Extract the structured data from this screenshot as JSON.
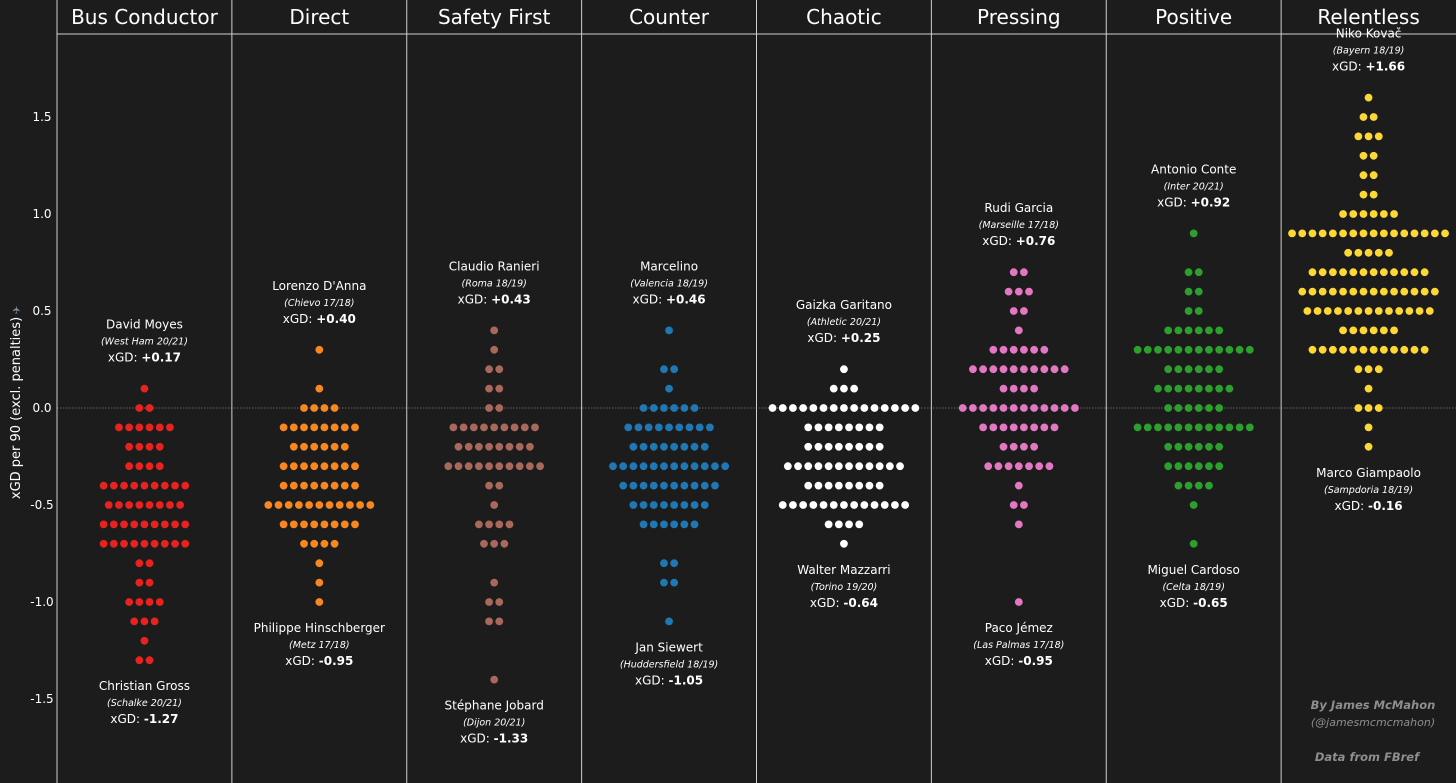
{
  "chart_data": {
    "type": "scatter",
    "ylabel": "xGD per 90  (excl. penalties)",
    "ylim": [
      -1.9,
      1.95
    ],
    "yticks": [
      1.5,
      1.0,
      0.5,
      0.0,
      -0.5,
      -1.0,
      -1.5
    ],
    "ytick_labels": [
      "1.5",
      "1.0",
      "0.5",
      "0.0",
      "-0.5",
      "-1.0",
      "-1.5"
    ],
    "zero_line": true,
    "categories": [
      "Bus Conductor",
      "Direct",
      "Safety First",
      "Counter",
      "Chaotic",
      "Pressing",
      "Positive",
      "Relentless"
    ],
    "series": [
      {
        "name": "Bus Conductor",
        "color": "#e8221f",
        "rows": [
          [
            0.1,
            1
          ],
          [
            0.0,
            2
          ],
          [
            -0.1,
            6
          ],
          [
            -0.2,
            4
          ],
          [
            -0.3,
            4
          ],
          [
            -0.4,
            9
          ],
          [
            -0.5,
            8
          ],
          [
            -0.6,
            9
          ],
          [
            -0.7,
            9
          ],
          [
            -0.8,
            2
          ],
          [
            -0.9,
            2
          ],
          [
            -1.0,
            4
          ],
          [
            -1.1,
            3
          ],
          [
            -1.2,
            1
          ],
          [
            -1.3,
            2
          ]
        ],
        "best": {
          "name": "David Moyes",
          "context": "(West Ham 20/21)",
          "xgd_label": "xGD:",
          "xgd_value": "+0.17",
          "y": 0.17
        },
        "worst": {
          "name": "Christian Gross",
          "context": "(Schalke 20/21)",
          "xgd_label": "xGD:",
          "xgd_value": "-1.27",
          "y": -1.27
        }
      },
      {
        "name": "Direct",
        "color": "#f7871e",
        "rows": [
          [
            0.3,
            1
          ],
          [
            0.1,
            1
          ],
          [
            0.0,
            4
          ],
          [
            -0.1,
            8
          ],
          [
            -0.2,
            6
          ],
          [
            -0.3,
            8
          ],
          [
            -0.4,
            8
          ],
          [
            -0.5,
            11
          ],
          [
            -0.6,
            8
          ],
          [
            -0.7,
            4
          ],
          [
            -0.8,
            1
          ],
          [
            -0.9,
            1
          ],
          [
            -1.0,
            1
          ]
        ],
        "best": {
          "name": "Lorenzo D'Anna",
          "context": "(Chievo 17/18)",
          "xgd_label": "xGD:",
          "xgd_value": "+0.40",
          "y": 0.4
        },
        "worst": {
          "name": "Philippe Hinschberger",
          "context": "(Metz 17/18)",
          "xgd_label": "xGD:",
          "xgd_value": "-0.95",
          "y": -0.95
        }
      },
      {
        "name": "Safety First",
        "color": "#a8685c",
        "rows": [
          [
            0.4,
            1
          ],
          [
            0.3,
            1
          ],
          [
            0.2,
            2
          ],
          [
            0.1,
            2
          ],
          [
            0.0,
            2
          ],
          [
            -0.1,
            9
          ],
          [
            -0.2,
            8
          ],
          [
            -0.3,
            10
          ],
          [
            -0.4,
            2
          ],
          [
            -0.5,
            1
          ],
          [
            -0.6,
            4
          ],
          [
            -0.7,
            3
          ],
          [
            -0.9,
            1
          ],
          [
            -1.0,
            2
          ],
          [
            -1.1,
            2
          ],
          [
            -1.4,
            1
          ]
        ],
        "best": {
          "name": "Claudio Ranieri",
          "context": "(Roma 18/19)",
          "xgd_label": "xGD:",
          "xgd_value": "+0.43",
          "y": 0.43
        },
        "worst": {
          "name": "Stéphane Jobard",
          "context": "(Dijon 20/21)",
          "xgd_label": "xGD:",
          "xgd_value": "-1.33",
          "y": -1.33
        }
      },
      {
        "name": "Counter",
        "color": "#1f77b4",
        "rows": [
          [
            0.4,
            1
          ],
          [
            0.2,
            2
          ],
          [
            0.1,
            1
          ],
          [
            0.0,
            6
          ],
          [
            -0.1,
            9
          ],
          [
            -0.2,
            8
          ],
          [
            -0.3,
            12
          ],
          [
            -0.4,
            10
          ],
          [
            -0.5,
            8
          ],
          [
            -0.6,
            6
          ],
          [
            -0.8,
            2
          ],
          [
            -0.9,
            2
          ],
          [
            -1.1,
            1
          ]
        ],
        "best": {
          "name": "Marcelino",
          "context": "(Valencia 18/19)",
          "xgd_label": "xGD:",
          "xgd_value": "+0.46",
          "y": 0.46
        },
        "worst": {
          "name": "Jan Siewert",
          "context": "(Huddersfield 18/19)",
          "xgd_label": "xGD:",
          "xgd_value": "-1.05",
          "y": -1.05
        }
      },
      {
        "name": "Chaotic",
        "color": "#ffffff",
        "rows": [
          [
            0.2,
            1
          ],
          [
            0.1,
            3
          ],
          [
            0.0,
            15
          ],
          [
            -0.1,
            8
          ],
          [
            -0.2,
            8
          ],
          [
            -0.3,
            12
          ],
          [
            -0.4,
            8
          ],
          [
            -0.5,
            13
          ],
          [
            -0.6,
            4
          ],
          [
            -0.7,
            1
          ]
        ],
        "best": {
          "name": "Gaizka Garitano",
          "context": "(Athletic 20/21)",
          "xgd_label": "xGD:",
          "xgd_value": "+0.25",
          "y": 0.25
        },
        "worst": {
          "name": "Walter Mazzarri",
          "context": "(Torino 19/20)",
          "xgd_label": "xGD:",
          "xgd_value": "-0.64",
          "y": -0.64
        }
      },
      {
        "name": "Pressing",
        "color": "#e377c2",
        "rows": [
          [
            0.7,
            2
          ],
          [
            0.6,
            3
          ],
          [
            0.5,
            2
          ],
          [
            0.4,
            1
          ],
          [
            0.3,
            6
          ],
          [
            0.2,
            10
          ],
          [
            0.1,
            4
          ],
          [
            0.0,
            12
          ],
          [
            -0.1,
            8
          ],
          [
            -0.2,
            4
          ],
          [
            -0.3,
            7
          ],
          [
            -0.4,
            1
          ],
          [
            -0.5,
            2
          ],
          [
            -0.6,
            1
          ],
          [
            -1.0,
            1
          ]
        ],
        "best": {
          "name": "Rudi Garcia",
          "context": "(Marseille 17/18)",
          "xgd_label": "xGD:",
          "xgd_value": "+0.76",
          "y": 0.76
        },
        "worst": {
          "name": "Paco Jémez",
          "context": "(Las Palmas 17/18)",
          "xgd_label": "xGD:",
          "xgd_value": "-0.95",
          "y": -0.95
        }
      },
      {
        "name": "Positive",
        "color": "#2ca02c",
        "rows": [
          [
            0.9,
            1
          ],
          [
            0.7,
            2
          ],
          [
            0.6,
            2
          ],
          [
            0.5,
            2
          ],
          [
            0.4,
            6
          ],
          [
            0.3,
            12
          ],
          [
            0.2,
            6
          ],
          [
            0.1,
            8
          ],
          [
            0.0,
            6
          ],
          [
            -0.1,
            12
          ],
          [
            -0.2,
            6
          ],
          [
            -0.3,
            6
          ],
          [
            -0.4,
            4
          ],
          [
            -0.5,
            1
          ],
          [
            -0.7,
            1
          ]
        ],
        "best": {
          "name": "Antonio Conte",
          "context": "(Inter 20/21)",
          "xgd_label": "xGD:",
          "xgd_value": "+0.92",
          "y": 0.92
        },
        "worst": {
          "name": "Miguel Cardoso",
          "context": "(Celta 18/19)",
          "xgd_label": "xGD:",
          "xgd_value": "-0.65",
          "y": -0.65
        }
      },
      {
        "name": "Relentless",
        "color": "#fdd835",
        "rows": [
          [
            1.6,
            1
          ],
          [
            1.5,
            2
          ],
          [
            1.4,
            3
          ],
          [
            1.3,
            2
          ],
          [
            1.2,
            2
          ],
          [
            1.1,
            2
          ],
          [
            1.0,
            6
          ],
          [
            0.9,
            16
          ],
          [
            0.8,
            5
          ],
          [
            0.7,
            12
          ],
          [
            0.6,
            14
          ],
          [
            0.5,
            13
          ],
          [
            0.4,
            6
          ],
          [
            0.3,
            12
          ],
          [
            0.2,
            3
          ],
          [
            0.1,
            1
          ],
          [
            0.0,
            3
          ],
          [
            -0.1,
            1
          ],
          [
            -0.2,
            1
          ]
        ],
        "best": {
          "name": "Niko Kovač",
          "context": "(Bayern 18/19)",
          "xgd_label": "xGD:",
          "xgd_value": "+1.66",
          "y": 1.66
        },
        "worst": {
          "name": "Marco Giampaolo",
          "context": "(Sampdoria 18/19)",
          "xgd_label": "xGD:",
          "xgd_value": "-0.16",
          "y": -0.16
        }
      }
    ]
  },
  "credits": {
    "author": "By James McMahon",
    "handle": "(@jamesmcmcmahon)",
    "source": "Data from FBref"
  },
  "colors": {
    "background": "#1c1c1c",
    "divider": "#cfcfcf",
    "zero_line": "#7a7a7a",
    "credit_text": "#8e8e8e"
  }
}
